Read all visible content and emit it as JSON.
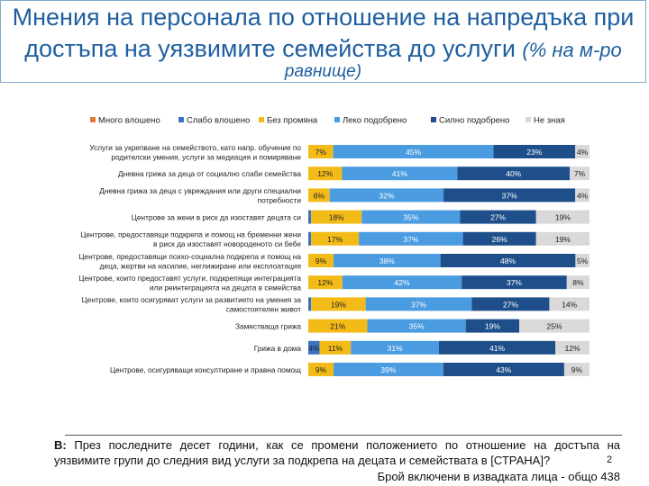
{
  "title": {
    "line1": "Мнения на персонала по отношение на напредъка при",
    "line2": "достъпа на уязвимите семейства до услуги",
    "line2_suffix": "(% на м-ро",
    "line3": "равнище)"
  },
  "chart_data": {
    "type": "bar",
    "orientation": "horizontal",
    "stacked": true,
    "legend_position": "top",
    "colors": [
      "#e4753b",
      "#3a72c0",
      "#f3bb18",
      "#4a9be0",
      "#1f4f8a",
      "#d9d9d9"
    ],
    "legend": [
      "Много влошено",
      "Слабо влошено",
      "Без промяна",
      "Леко подобрено",
      "Силно подобрено",
      "Не зная"
    ],
    "categories": [
      [
        "Услуги за укрепване на семейството, като напр. обучение по",
        "родителски умения, услуги за медиация и помиряване"
      ],
      [
        "Дневна грижа за деца от социално слаби семейства"
      ],
      [
        "Дневна грижа за деца с увреждания или други специални",
        "потребности"
      ],
      [
        "Центрове за жени в риск да изоставят децата си"
      ],
      [
        "Центрове, предоставящи подкрепа и помощ на бременни жени",
        "в риск да изоставят новороденото си бебе"
      ],
      [
        "Центрове, предоставящи психо-социална подкрепа и помощ на",
        "деца, жертви на насилие, неглижиране или експлоатация"
      ],
      [
        "Центрове, които предоставят услуги, подкрепящи интеграцията",
        "или реинтеграцията на децата в семейства"
      ],
      [
        "Центрове, които осигуряват услуги за развитието на умения за",
        "самостоятелен живот"
      ],
      [
        "Заместваща грижа"
      ],
      [
        "Грижа в дома"
      ],
      [
        "Центрове, осигуряващи консултиране и правна помощ"
      ]
    ],
    "series": [
      {
        "name": "Много влошено",
        "values": [
          0,
          0,
          0,
          0,
          0,
          0,
          0,
          0,
          0,
          0,
          0
        ]
      },
      {
        "name": "Слабо влошено",
        "values": [
          0,
          0,
          0,
          1,
          1,
          0,
          0,
          1,
          0,
          4,
          0
        ]
      },
      {
        "name": "Без промяна",
        "values": [
          7,
          12,
          6,
          18,
          17,
          9,
          12,
          19,
          21,
          11,
          9
        ]
      },
      {
        "name": "Леко подобрено",
        "values": [
          45,
          41,
          32,
          35,
          37,
          38,
          42,
          37,
          35,
          31,
          39
        ]
      },
      {
        "name": "Силно подобрено",
        "values": [
          23,
          40,
          37,
          27,
          26,
          48,
          37,
          27,
          19,
          41,
          43
        ]
      },
      {
        "name": "Не зная",
        "values": [
          4,
          7,
          4,
          19,
          19,
          5,
          8,
          14,
          25,
          12,
          9
        ]
      }
    ],
    "labels": [
      [
        "",
        "",
        "7%",
        "45%",
        "23%",
        "4%"
      ],
      [
        "",
        "",
        "12%",
        "41%",
        "40%",
        "7%"
      ],
      [
        "",
        "",
        "6%",
        "32%",
        "37%",
        "4%"
      ],
      [
        "",
        "",
        "18%",
        "35%",
        "27%",
        "19%"
      ],
      [
        "",
        "",
        "17%",
        "37%",
        "26%",
        "19%"
      ],
      [
        "",
        "",
        "9%",
        "38%",
        "48%",
        "5%"
      ],
      [
        "",
        "",
        "12%",
        "42%",
        "37%",
        "8%"
      ],
      [
        "",
        "",
        "19%",
        "37%",
        "27%",
        "14%"
      ],
      [
        "",
        "",
        "21%",
        "35%",
        "19%",
        "25%"
      ],
      [
        "",
        "4%",
        "11%",
        "31%",
        "41%",
        "12%"
      ],
      [
        "",
        "",
        "9%",
        "39%",
        "43%",
        "9%"
      ]
    ],
    "xlim": [
      0,
      100
    ]
  },
  "footer": {
    "question_label": "B:",
    "question_text": "През последните десет години, как се промени положението по отношение на достъпа на уязвимите групи до следния вид услуги за подкрепа на децата и семействата в [СТРАНА]?",
    "base_text": "Брой включени в извадката лица - общо 438",
    "page_number": "2"
  }
}
